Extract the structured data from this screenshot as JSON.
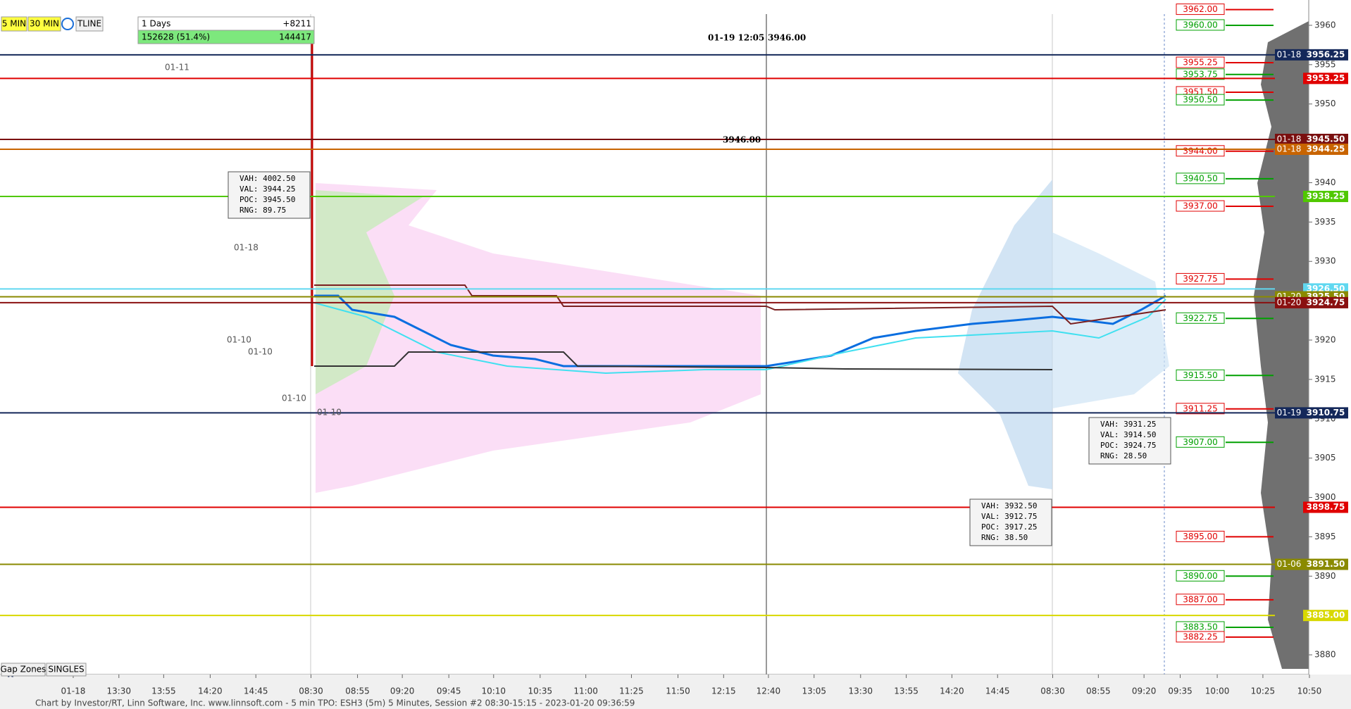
{
  "toolbar": {
    "buttons": [
      "5 MIN",
      "30 MIN",
      "TLINE"
    ]
  },
  "session_box": {
    "period": "1 Days",
    "delta": "+8211",
    "volume": "152628 (51.4%)",
    "total": "144417"
  },
  "crosshair": {
    "time": "01-19 12:05",
    "price": "3946.00",
    "marker": "3946.00"
  },
  "price_axis": {
    "ylim": [
      3877.5,
      3962.5
    ],
    "ticks": [
      3880,
      3885,
      3890,
      3895,
      3900,
      3905,
      3910,
      3915,
      3920,
      3925,
      3930,
      3935,
      3940,
      3945,
      3950,
      3955,
      3960
    ]
  },
  "levels": [
    {
      "value": 3962,
      "label": "3962.00",
      "color": "#e00000"
    },
    {
      "value": 3960,
      "label": "3960.00",
      "color": "#00a000"
    },
    {
      "value": 3955.25,
      "label": "3955.25",
      "color": "#e00000"
    },
    {
      "value": 3953.75,
      "label": "3953.75",
      "color": "#00a000"
    },
    {
      "value": 3951.5,
      "label": "3951.50",
      "color": "#e00000"
    },
    {
      "value": 3950.5,
      "label": "3950.50",
      "color": "#00a000"
    },
    {
      "value": 3944,
      "label": "3944.00",
      "color": "#e00000"
    },
    {
      "value": 3940.5,
      "label": "3940.50",
      "color": "#00a000"
    },
    {
      "value": 3937,
      "label": "3937.00",
      "color": "#e00000"
    },
    {
      "value": 3927.75,
      "label": "3927.75",
      "color": "#e00000"
    },
    {
      "value": 3922.75,
      "label": "3922.75",
      "color": "#00a000"
    },
    {
      "value": 3915.5,
      "label": "3915.50",
      "color": "#00a000"
    },
    {
      "value": 3911.25,
      "label": "3911.25",
      "color": "#e00000"
    },
    {
      "value": 3907,
      "label": "3907.00",
      "color": "#00a000"
    },
    {
      "value": 3895,
      "label": "3895.00",
      "color": "#e00000"
    },
    {
      "value": 3890,
      "label": "3890.00",
      "color": "#00a000"
    },
    {
      "value": 3887,
      "label": "3887.00",
      "color": "#e00000"
    },
    {
      "value": 3883.5,
      "label": "3883.50",
      "color": "#00a000"
    },
    {
      "value": 3882.25,
      "label": "3882.25",
      "color": "#e00000"
    }
  ],
  "tags": [
    {
      "date": "01-18",
      "value": 3956.25,
      "label": "3956.25",
      "color": "#14285a"
    },
    {
      "date": null,
      "value": 3953.25,
      "label": "3953.25",
      "color": "#e00000"
    },
    {
      "date": "01-18",
      "value": 3945.5,
      "label": "3945.50",
      "color": "#7a1010"
    },
    {
      "date": "01-18",
      "value": 3944.25,
      "label": "3944.25",
      "color": "#c86400"
    },
    {
      "date": null,
      "value": 3938.25,
      "label": "3938.25",
      "color": "#50c800"
    },
    {
      "date": null,
      "value": 3926.5,
      "label": "3926.50",
      "color": "#60d8f0"
    },
    {
      "date": "01-20",
      "value": 3925.5,
      "label": "3925.50",
      "color": "#8a8a00"
    },
    {
      "date": "01-20",
      "value": 3924.75,
      "label": "3924.75",
      "color": "#8a1010"
    },
    {
      "date": "01-19",
      "value": 3910.75,
      "label": "3910.75",
      "color": "#14285a"
    },
    {
      "date": null,
      "value": 3898.75,
      "label": "3898.75",
      "color": "#e00000"
    },
    {
      "date": "01-06",
      "value": 3891.5,
      "label": "3891.50",
      "color": "#8a8a00"
    },
    {
      "date": null,
      "value": 3885,
      "label": "3885.00",
      "color": "#d8d800"
    }
  ],
  "stats_boxes": [
    {
      "lines": [
        "VAH: 4002.50",
        "VAL: 3944.25",
        "POC: 3945.50",
        "RNG: 89.75"
      ]
    },
    {
      "lines": [
        "VAH: 3932.50",
        "VAL: 3912.75",
        "POC: 3917.25",
        "RNG: 38.50"
      ]
    },
    {
      "lines": [
        "VAH: 3931.25",
        "VAL: 3914.50",
        "POC: 3924.75",
        "RNG: 28.50"
      ]
    }
  ],
  "left_labels": [
    "01-11",
    "01-18",
    "01-10",
    "01-10",
    "01-10",
    "01-10"
  ],
  "time_axis": [
    "01-18",
    "13:30",
    "13:55",
    "14:20",
    "14:45",
    "08:30",
    "08:55",
    "09:20",
    "09:45",
    "10:10",
    "10:35",
    "11:00",
    "11:25",
    "11:50",
    "12:15",
    "12:40",
    "13:05",
    "13:30",
    "13:55",
    "14:20",
    "14:45",
    "08:30",
    "08:55",
    "09:20",
    "09:35",
    "10:00",
    "10:25",
    "10:50"
  ],
  "bottom_buttons": [
    "Gap Zones",
    "SINGLES"
  ],
  "footer": "Chart by Investor/RT, Linn Software, Inc. www.linnsoft.com - 5 min TPO: ESH3 (5m) 5 Minutes, Session #2 08:30-15:15 - 2023-01-20 09:36:59"
}
